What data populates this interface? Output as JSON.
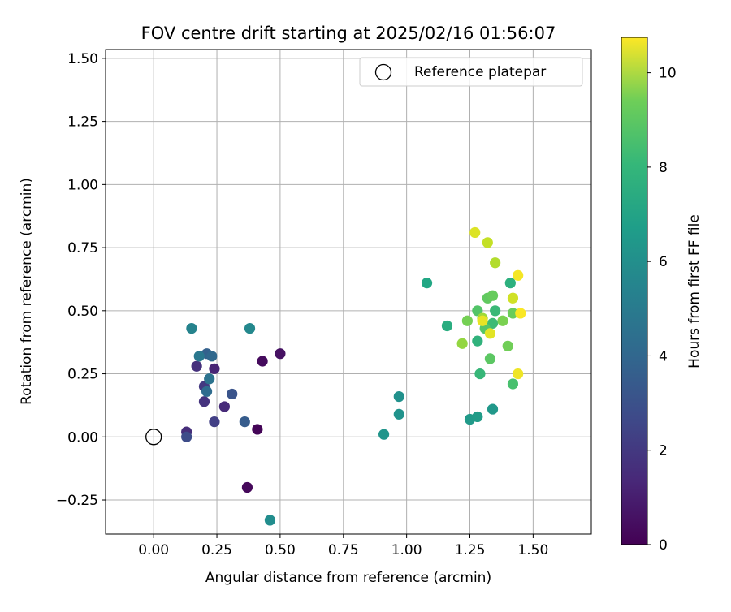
{
  "chart_data": {
    "type": "scatter",
    "title": "FOV centre drift starting at 2025/02/16 01:56:07",
    "xlabel": "Angular distance from reference (arcmin)",
    "ylabel": "Rotation from reference (arcmin)",
    "xlim": [
      -0.19,
      1.73
    ],
    "ylim": [
      -0.385,
      1.535
    ],
    "xticks": [
      0.0,
      0.25,
      0.5,
      0.75,
      1.0,
      1.25,
      1.5
    ],
    "xtick_labels": [
      "0.00",
      "0.25",
      "0.50",
      "0.75",
      "1.00",
      "1.25",
      "1.50"
    ],
    "yticks": [
      -0.25,
      0.0,
      0.25,
      0.5,
      0.75,
      1.0,
      1.25,
      1.5
    ],
    "ytick_labels": [
      "−0.25",
      "0.00",
      "0.25",
      "0.50",
      "0.75",
      "1.00",
      "1.25",
      "1.50"
    ],
    "grid": true,
    "legend": {
      "placement": "top-right",
      "entries": [
        "Reference platepar"
      ]
    },
    "reference_point": {
      "x": 0.0,
      "y": 0.0
    },
    "colorbar": {
      "label": "Hours from first FF file",
      "colormap": "viridis",
      "range": [
        0,
        10.75
      ],
      "ticks": [
        0,
        2,
        4,
        6,
        8,
        10
      ],
      "tick_labels": [
        "0",
        "2",
        "4",
        "6",
        "8",
        "10"
      ]
    },
    "points": [
      {
        "x": 0.41,
        "y": 0.03,
        "h": 0.1
      },
      {
        "x": 0.37,
        "y": -0.2,
        "h": 0.2
      },
      {
        "x": 0.43,
        "y": 0.3,
        "h": 0.3
      },
      {
        "x": 0.5,
        "y": 0.33,
        "h": 0.5
      },
      {
        "x": 0.24,
        "y": 0.27,
        "h": 1.1
      },
      {
        "x": 0.28,
        "y": 0.12,
        "h": 1.3
      },
      {
        "x": 0.13,
        "y": 0.02,
        "h": 1.4
      },
      {
        "x": 0.17,
        "y": 0.28,
        "h": 1.5
      },
      {
        "x": 0.2,
        "y": 0.14,
        "h": 1.6
      },
      {
        "x": 0.2,
        "y": 0.2,
        "h": 1.8
      },
      {
        "x": 0.24,
        "y": 0.06,
        "h": 2.0
      },
      {
        "x": 0.13,
        "y": 0.0,
        "h": 2.5
      },
      {
        "x": 0.31,
        "y": 0.17,
        "h": 2.8
      },
      {
        "x": 0.36,
        "y": 0.06,
        "h": 3.1
      },
      {
        "x": 0.21,
        "y": 0.33,
        "h": 3.3
      },
      {
        "x": 0.23,
        "y": 0.32,
        "h": 3.6
      },
      {
        "x": 0.21,
        "y": 0.18,
        "h": 3.8
      },
      {
        "x": 0.22,
        "y": 0.23,
        "h": 4.1
      },
      {
        "x": 0.18,
        "y": 0.32,
        "h": 4.3
      },
      {
        "x": 0.15,
        "y": 0.43,
        "h": 4.8
      },
      {
        "x": 0.38,
        "y": 0.43,
        "h": 5.0
      },
      {
        "x": 0.46,
        "y": -0.33,
        "h": 5.2
      },
      {
        "x": 0.97,
        "y": 0.16,
        "h": 5.4
      },
      {
        "x": 0.97,
        "y": 0.09,
        "h": 5.5
      },
      {
        "x": 0.91,
        "y": 0.01,
        "h": 5.6
      },
      {
        "x": 1.34,
        "y": 0.11,
        "h": 5.7
      },
      {
        "x": 1.25,
        "y": 0.07,
        "h": 5.8
      },
      {
        "x": 1.28,
        "y": 0.08,
        "h": 5.9
      },
      {
        "x": 1.08,
        "y": 0.61,
        "h": 6.4
      },
      {
        "x": 1.16,
        "y": 0.44,
        "h": 6.7
      },
      {
        "x": 1.41,
        "y": 0.61,
        "h": 6.8
      },
      {
        "x": 1.28,
        "y": 0.38,
        "h": 6.9
      },
      {
        "x": 1.29,
        "y": 0.25,
        "h": 7.1
      },
      {
        "x": 1.35,
        "y": 0.5,
        "h": 7.2
      },
      {
        "x": 1.34,
        "y": 0.45,
        "h": 7.3
      },
      {
        "x": 1.42,
        "y": 0.21,
        "h": 7.6
      },
      {
        "x": 1.28,
        "y": 0.5,
        "h": 7.8
      },
      {
        "x": 1.31,
        "y": 0.43,
        "h": 7.9
      },
      {
        "x": 1.33,
        "y": 0.31,
        "h": 8.0
      },
      {
        "x": 1.32,
        "y": 0.55,
        "h": 8.1
      },
      {
        "x": 1.34,
        "y": 0.56,
        "h": 8.2
      },
      {
        "x": 1.42,
        "y": 0.49,
        "h": 8.3
      },
      {
        "x": 1.4,
        "y": 0.36,
        "h": 8.4
      },
      {
        "x": 1.24,
        "y": 0.46,
        "h": 8.5
      },
      {
        "x": 1.38,
        "y": 0.46,
        "h": 8.6
      },
      {
        "x": 1.22,
        "y": 0.37,
        "h": 9.0
      },
      {
        "x": 1.3,
        "y": 0.47,
        "h": 9.2
      },
      {
        "x": 1.35,
        "y": 0.69,
        "h": 9.5
      },
      {
        "x": 1.32,
        "y": 0.77,
        "h": 9.8
      },
      {
        "x": 1.42,
        "y": 0.55,
        "h": 10.0
      },
      {
        "x": 1.27,
        "y": 0.81,
        "h": 10.2
      },
      {
        "x": 1.33,
        "y": 0.41,
        "h": 10.3
      },
      {
        "x": 1.3,
        "y": 0.46,
        "h": 10.4
      },
      {
        "x": 1.44,
        "y": 0.25,
        "h": 10.5
      },
      {
        "x": 1.44,
        "y": 0.64,
        "h": 10.6
      },
      {
        "x": 1.45,
        "y": 0.49,
        "h": 10.7
      }
    ]
  }
}
